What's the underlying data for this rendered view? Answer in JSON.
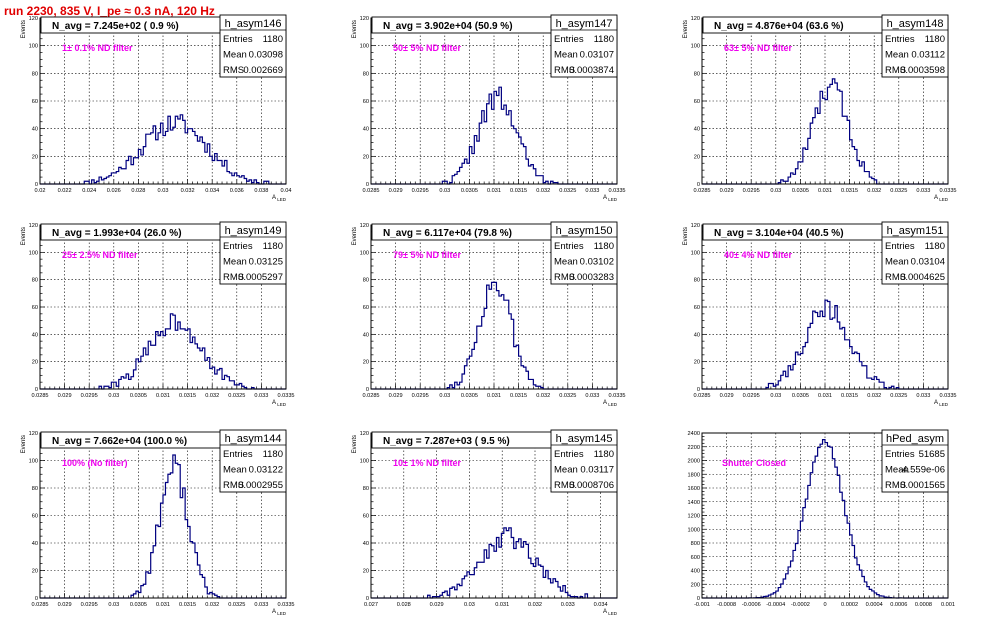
{
  "title": "run 2230,   835 V, I_pe ≈ 0.3 nA, 120 Hz",
  "colors": {
    "title": "#e00000",
    "hist": "#000080",
    "filter_text": "#ee00ee"
  },
  "chart_data": [
    {
      "type": "histogram",
      "name": "h_asym146",
      "navg": "N_avg = 7.245e+02 ( 0.9 %)",
      "filter": "1± 0.1% ND filter",
      "stats": {
        "entries": "1180",
        "mean": "0.03098",
        "rms": "0.002669"
      },
      "xlim": [
        0.02,
        0.04
      ],
      "ylim": [
        0,
        120
      ],
      "xlabel": "A_LED",
      "ylabel": "Events",
      "xticks": [
        "0.02",
        "0.022",
        "0.024",
        "0.026",
        "0.028",
        "0.03",
        "0.032",
        "0.034",
        "0.036",
        "0.038",
        "0.04"
      ],
      "yticks": [
        "0",
        "20",
        "40",
        "60",
        "80",
        "100",
        "120"
      ],
      "mean_val": 0.03098,
      "sigma": 0.002669,
      "bins": 100,
      "peak": 44,
      "seed": 11
    },
    {
      "type": "histogram",
      "name": "h_asym147",
      "navg": "N_avg = 3.902e+04 (50.9 %)",
      "filter": "50± 5% ND filter",
      "stats": {
        "entries": "1180",
        "mean": "0.03107",
        "rms": "0.0003874"
      },
      "xlim": [
        0.0285,
        0.0335
      ],
      "ylim": [
        0,
        120
      ],
      "xlabel": "A_LED",
      "ylabel": "Events",
      "xticks": [
        "0.0285",
        "0.029",
        "0.0295",
        "0.03",
        "0.0305",
        "0.031",
        "0.0315",
        "0.032",
        "0.0325",
        "0.033",
        "0.0335"
      ],
      "yticks": [
        "0",
        "20",
        "40",
        "60",
        "80",
        "100",
        "120"
      ],
      "mean_val": 0.03107,
      "sigma": 0.0003874,
      "bins": 100,
      "peak": 62,
      "seed": 22
    },
    {
      "type": "histogram",
      "name": "h_asym148",
      "navg": "N_avg = 4.876e+04 (63.6 %)",
      "filter": "63± 5% ND filter",
      "stats": {
        "entries": "1180",
        "mean": "0.03112",
        "rms": "0.0003598"
      },
      "xlim": [
        0.0285,
        0.0335
      ],
      "ylim": [
        0,
        120
      ],
      "xlabel": "A_LED",
      "ylabel": "Events",
      "xticks": [
        "0.0285",
        "0.029",
        "0.0295",
        "0.03",
        "0.0305",
        "0.031",
        "0.0315",
        "0.032",
        "0.0325",
        "0.033",
        "0.0335"
      ],
      "yticks": [
        "0",
        "20",
        "40",
        "60",
        "80",
        "100",
        "120"
      ],
      "mean_val": 0.03112,
      "sigma": 0.0003598,
      "bins": 100,
      "peak": 70,
      "seed": 33
    },
    {
      "type": "histogram",
      "name": "h_asym149",
      "navg": "N_avg = 1.993e+04 (26.0 %)",
      "filter": "25± 2.5% ND filter",
      "stats": {
        "entries": "1180",
        "mean": "0.03125",
        "rms": "0.0005297"
      },
      "xlim": [
        0.0285,
        0.0335
      ],
      "ylim": [
        0,
        120
      ],
      "xlabel": "A_LED",
      "ylabel": "Events",
      "xticks": [
        "0.0285",
        "0.029",
        "0.0295",
        "0.03",
        "0.0305",
        "0.031",
        "0.0315",
        "0.032",
        "0.0325",
        "0.033",
        "0.0335"
      ],
      "yticks": [
        "0",
        "20",
        "40",
        "60",
        "80",
        "100",
        "120"
      ],
      "mean_val": 0.03125,
      "sigma": 0.0005297,
      "bins": 100,
      "peak": 50,
      "seed": 44
    },
    {
      "type": "histogram",
      "name": "h_asym150",
      "navg": "N_avg = 6.117e+04 (79.8 %)",
      "filter": "79± 5% ND filter",
      "stats": {
        "entries": "1180",
        "mean": "0.03102",
        "rms": "0.0003283"
      },
      "xlim": [
        0.0285,
        0.0335
      ],
      "ylim": [
        0,
        120
      ],
      "xlabel": "A_LED",
      "ylabel": "Events",
      "xticks": [
        "0.0285",
        "0.029",
        "0.0295",
        "0.03",
        "0.0305",
        "0.031",
        "0.0315",
        "0.032",
        "0.0325",
        "0.033",
        "0.0335"
      ],
      "yticks": [
        "0",
        "20",
        "40",
        "60",
        "80",
        "100",
        "120"
      ],
      "mean_val": 0.03102,
      "sigma": 0.0003283,
      "bins": 100,
      "peak": 78,
      "seed": 55
    },
    {
      "type": "histogram",
      "name": "h_asym151",
      "navg": "N_avg = 3.104e+04 (40.5 %)",
      "filter": "40± 4% ND filter",
      "stats": {
        "entries": "1180",
        "mean": "0.03104",
        "rms": "0.0004625"
      },
      "xlim": [
        0.0285,
        0.0335
      ],
      "ylim": [
        0,
        120
      ],
      "xlabel": "A_LED",
      "ylabel": "Events",
      "xticks": [
        "0.0285",
        "0.029",
        "0.0295",
        "0.03",
        "0.0305",
        "0.031",
        "0.0315",
        "0.032",
        "0.0325",
        "0.033",
        "0.0335"
      ],
      "yticks": [
        "0",
        "20",
        "40",
        "60",
        "80",
        "100",
        "120"
      ],
      "mean_val": 0.03104,
      "sigma": 0.0004625,
      "bins": 100,
      "peak": 58,
      "seed": 66
    },
    {
      "type": "histogram",
      "name": "h_asym144",
      "navg": "N_avg = 7.662e+04 (100.0 %)",
      "filter": "100% (No filter)",
      "stats": {
        "entries": "1180",
        "mean": "0.03122",
        "rms": "0.0002955"
      },
      "xlim": [
        0.0285,
        0.0335
      ],
      "ylim": [
        0,
        120
      ],
      "xlabel": "A_LED",
      "ylabel": "Events",
      "xticks": [
        "0.0285",
        "0.029",
        "0.0295",
        "0.03",
        "0.0305",
        "0.031",
        "0.0315",
        "0.032",
        "0.0325",
        "0.033",
        "0.0335"
      ],
      "yticks": [
        "0",
        "20",
        "40",
        "60",
        "80",
        "100",
        "120"
      ],
      "mean_val": 0.03122,
      "sigma": 0.0002955,
      "bins": 100,
      "peak": 95,
      "seed": 77
    },
    {
      "type": "histogram",
      "name": "h_asym145",
      "navg": "N_avg = 7.287e+03 ( 9.5 %)",
      "filter": "10± 1% ND filter",
      "stats": {
        "entries": "1180",
        "mean": "0.03117",
        "rms": "0.0008706"
      },
      "xlim": [
        0.027,
        0.0345
      ],
      "ylim": [
        0,
        120
      ],
      "xlabel": "A_LED",
      "ylabel": "Events",
      "xticks": [
        "0.027",
        "0.028",
        "0.029",
        "0.03",
        "0.031",
        "0.032",
        "0.033",
        "0.034"
      ],
      "yticks": [
        "0",
        "20",
        "40",
        "60",
        "80",
        "100",
        "120"
      ],
      "mean_val": 0.03117,
      "sigma": 0.0008706,
      "bins": 100,
      "peak": 44,
      "seed": 88
    },
    {
      "type": "histogram",
      "name": "hPed_asym",
      "navg": "",
      "filter": "Shutter Closed",
      "stats": {
        "entries": "51685",
        "mean": "-4.559e-06",
        "rms": "0.0001565"
      },
      "xlim": [
        -0.001,
        0.001
      ],
      "ylim": [
        0,
        2400
      ],
      "xlabel": "",
      "ylabel": "",
      "xticks": [
        "-0.001",
        "-0.0008",
        "-0.0006",
        "-0.0004",
        "-0.0002",
        "0",
        "0.0002",
        "0.0004",
        "0.0006",
        "0.0008",
        "0.001"
      ],
      "yticks": [
        "0",
        "200",
        "400",
        "600",
        "800",
        "1000",
        "1200",
        "1400",
        "1600",
        "1800",
        "2000",
        "2200",
        "2400"
      ],
      "mean_val": -4.559e-06,
      "sigma": 0.0001565,
      "bins": 100,
      "peak": 2280,
      "seed": 99
    }
  ]
}
